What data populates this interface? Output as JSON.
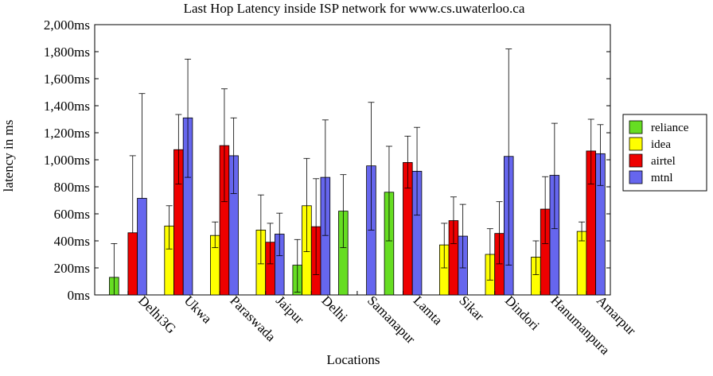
{
  "chart_data": {
    "type": "bar",
    "title": "Last Hop Latency inside ISP network for www.cs.uwaterloo.ca",
    "xlabel": "Locations",
    "ylabel": "latency in ms",
    "ylim": [
      0,
      2000
    ],
    "yticks": [
      0,
      200,
      400,
      600,
      800,
      1000,
      1200,
      1400,
      1600,
      1800,
      2000
    ],
    "ytick_labels": [
      "0ms",
      "200ms",
      "400ms",
      "600ms",
      "800ms",
      "1,000ms",
      "1,200ms",
      "1,400ms",
      "1,600ms",
      "1,800ms",
      "2,000ms"
    ],
    "legend_position": "right",
    "grid": false,
    "categories": [
      "Delhi3G",
      "Ukwa",
      "Paraswada",
      "Jaipur",
      "Delhi",
      "Samanapur",
      "Lamta",
      "Sikar",
      "Dindori",
      "Hanumanpura",
      "Amarpur"
    ],
    "series": [
      {
        "name": "reliance",
        "color": "#66dd22",
        "values": [
          130,
          null,
          null,
          null,
          220,
          620,
          760,
          null,
          null,
          null,
          null
        ],
        "err_low": [
          0,
          null,
          null,
          null,
          20,
          350,
          400,
          null,
          null,
          null,
          null
        ],
        "err_high": [
          380,
          null,
          null,
          null,
          410,
          890,
          1100,
          null,
          null,
          null,
          null
        ]
      },
      {
        "name": "idea",
        "color": "#ffff00",
        "values": [
          null,
          510,
          440,
          480,
          660,
          null,
          null,
          370,
          300,
          280,
          470
        ],
        "err_low": [
          null,
          340,
          350,
          230,
          320,
          null,
          null,
          200,
          110,
          150,
          400
        ],
        "err_high": [
          null,
          660,
          540,
          740,
          1010,
          null,
          null,
          530,
          490,
          400,
          540
        ]
      },
      {
        "name": "airtel",
        "color": "#ee0000",
        "values": [
          460,
          1075,
          1105,
          390,
          505,
          null,
          980,
          550,
          455,
          635,
          1065
        ],
        "err_low": [
          null,
          820,
          690,
          230,
          150,
          null,
          790,
          380,
          230,
          380,
          820
        ],
        "err_high": [
          1030,
          1335,
          1525,
          530,
          860,
          null,
          1175,
          725,
          690,
          875,
          1300
        ]
      },
      {
        "name": "mtnl",
        "color": "#6666ee",
        "values": [
          715,
          1310,
          1030,
          450,
          870,
          955,
          915,
          435,
          1025,
          885,
          1045
        ],
        "err_low": [
          null,
          870,
          750,
          290,
          440,
          480,
          590,
          200,
          220,
          490,
          810
        ],
        "err_high": [
          1490,
          1745,
          1310,
          605,
          1295,
          1425,
          1240,
          670,
          1820,
          1270,
          1260
        ]
      }
    ]
  }
}
